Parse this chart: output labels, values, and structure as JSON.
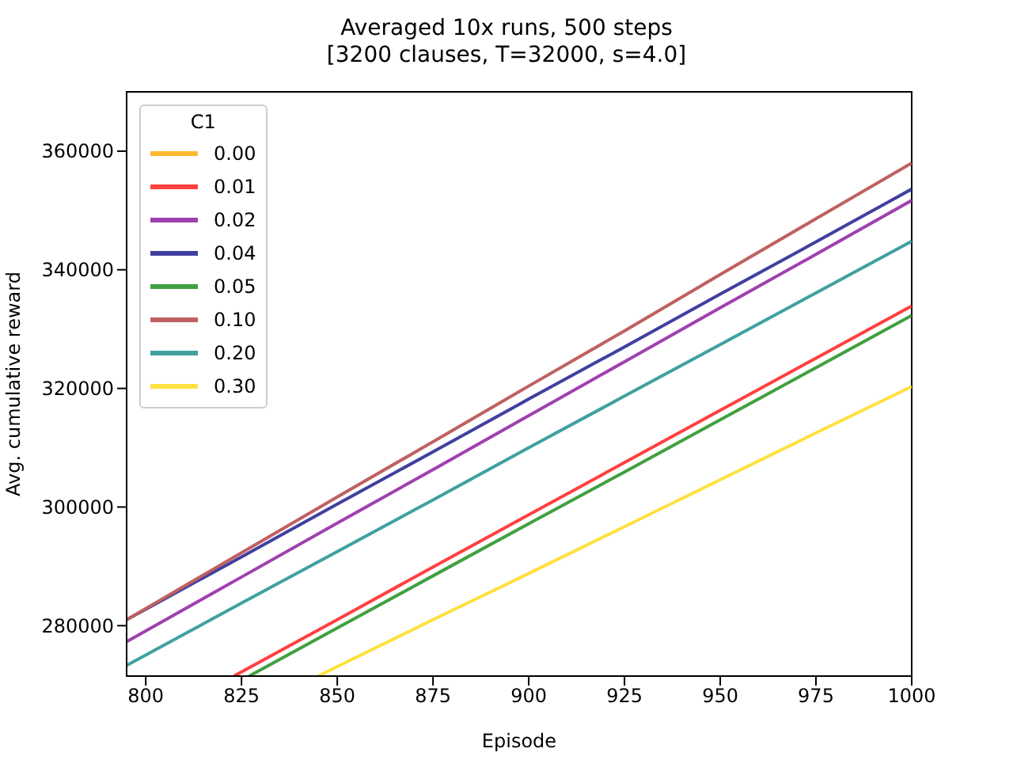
{
  "chart_data": {
    "type": "line",
    "title": "Averaged 10x runs, 500 steps",
    "subtitle": "[3200 clauses, T=32000, s=4.0]",
    "xlabel": "Episode",
    "ylabel": "Avg. cumulative reward",
    "legend_title": "C1",
    "x": [
      795,
      825,
      850,
      875,
      900,
      925,
      950,
      975,
      1000
    ],
    "series": [
      {
        "name": "0.00",
        "color": "#ffb830",
        "values": [
          null,
          null,
          null,
          null,
          null,
          null,
          null,
          null,
          null
        ]
      },
      {
        "name": "0.01",
        "color": "#ff4040",
        "x": [
          823,
          850,
          875,
          900,
          925,
          950,
          975,
          1000
        ],
        "values": [
          271500,
          281000,
          289900,
          298700,
          307500,
          316300,
          325100,
          333900
        ]
      },
      {
        "name": "0.02",
        "color": "#a040b0",
        "values": [
          277300,
          288200,
          297300,
          306300,
          315400,
          324500,
          333600,
          342600,
          351700
        ]
      },
      {
        "name": "0.04",
        "color": "#4040a0",
        "values": [
          281000,
          291600,
          300500,
          309300,
          318200,
          327000,
          335900,
          344700,
          353600
        ]
      },
      {
        "name": "0.05",
        "color": "#40a040",
        "x": [
          827,
          850,
          875,
          900,
          925,
          950,
          975,
          1000
        ],
        "values": [
          271500,
          279600,
          288400,
          297200,
          305900,
          314700,
          323500,
          332300
        ]
      },
      {
        "name": "0.10",
        "color": "#c06060",
        "values": [
          281000,
          292300,
          301700,
          311000,
          320400,
          329700,
          339200,
          348600,
          358000
        ]
      },
      {
        "name": "0.20",
        "color": "#40a0a0",
        "values": [
          273300,
          283800,
          292500,
          301200,
          310000,
          318700,
          327400,
          336100,
          344800
        ]
      },
      {
        "name": "0.30",
        "color": "#ffe040",
        "x": [
          845,
          850,
          875,
          900,
          925,
          950,
          975,
          1000
        ],
        "values": [
          271500,
          273100,
          281000,
          288800,
          296700,
          304600,
          312500,
          320300
        ]
      }
    ],
    "xlim": [
      795,
      1000
    ],
    "xticks": [
      800,
      825,
      850,
      875,
      900,
      925,
      950,
      975,
      1000
    ],
    "ylim": [
      271500,
      370000
    ],
    "yticks": [
      280000,
      300000,
      320000,
      340000,
      360000
    ],
    "grid": false,
    "legend": "top left",
    "marker": "none",
    "line_style": "solid"
  }
}
